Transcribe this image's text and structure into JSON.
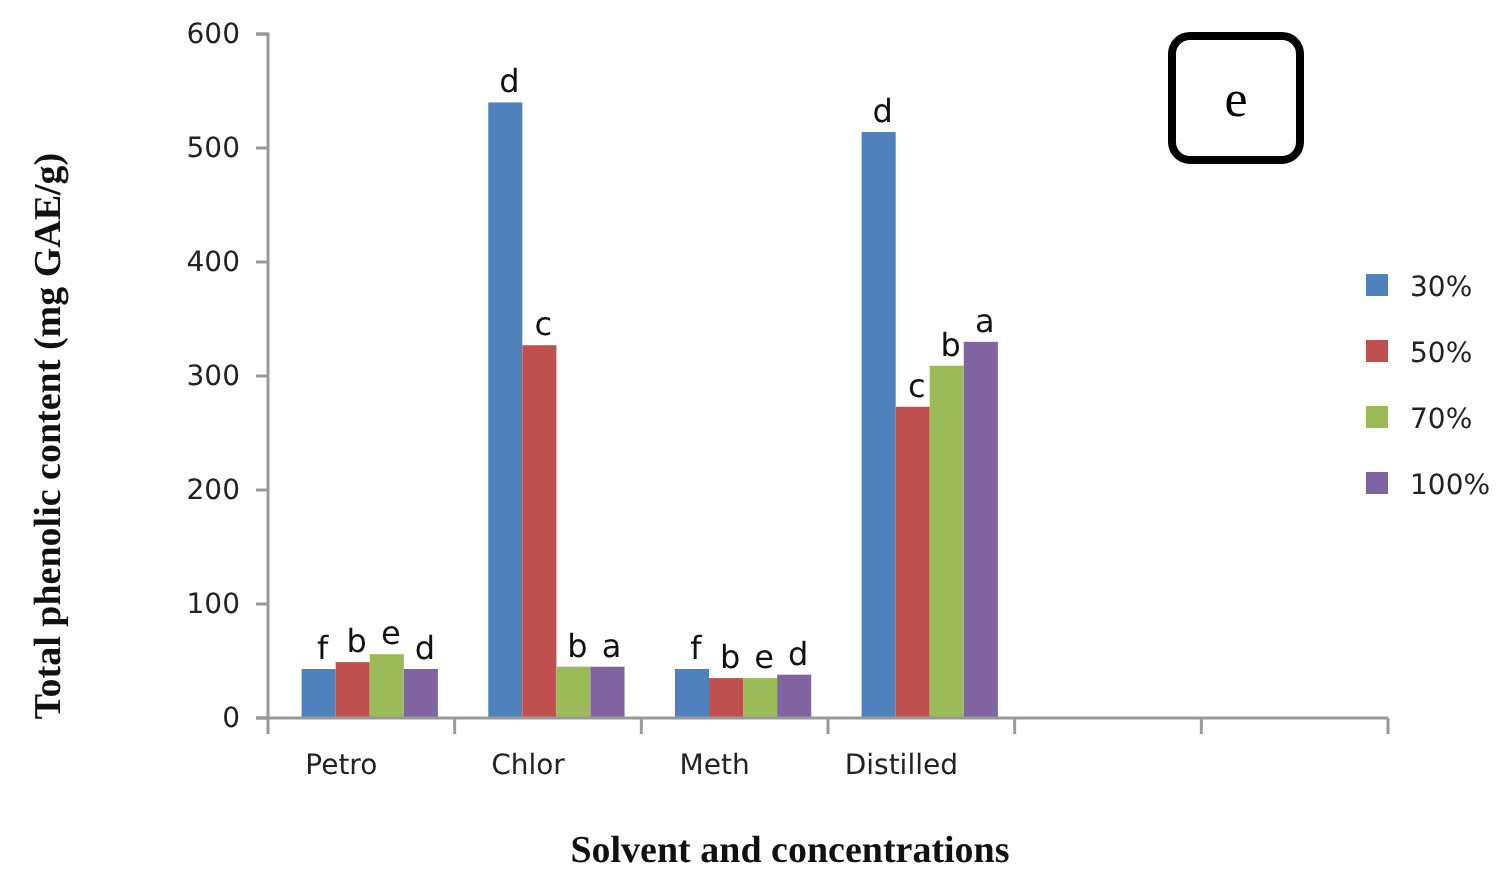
{
  "chart_data": {
    "type": "bar",
    "xlabel": "Solvent and concentrations",
    "ylabel": "Total phenolic content (mg GAE/g)",
    "categories": [
      "Petro",
      "Chlor",
      "Meth",
      "Distilled",
      null,
      null
    ],
    "series": [
      {
        "name": "30%",
        "color": "#4f81bd",
        "values": [
          43,
          540,
          43,
          514,
          null,
          null
        ],
        "value_labels": [
          "f",
          "d",
          "f",
          "d",
          null,
          null
        ]
      },
      {
        "name": "50%",
        "color": "#c0504d",
        "values": [
          49,
          327,
          35,
          273,
          null,
          null
        ],
        "value_labels": [
          "b",
          "c",
          "b",
          "c",
          null,
          null
        ]
      },
      {
        "name": "70%",
        "color": "#9bbb59",
        "values": [
          56,
          45,
          35,
          309,
          null,
          null
        ],
        "value_labels": [
          "e",
          "b",
          "e",
          "b",
          null,
          null
        ]
      },
      {
        "name": "100%",
        "color": "#8064a2",
        "values": [
          43,
          45,
          38,
          330,
          null,
          null
        ],
        "value_labels": [
          "d",
          "a",
          "d",
          "a",
          null,
          null
        ]
      }
    ],
    "ylim": [
      0,
      600
    ],
    "yticks": [
      0,
      100,
      200,
      300,
      400,
      500,
      600
    ],
    "legend": "right",
    "annotations": [
      "e"
    ]
  }
}
